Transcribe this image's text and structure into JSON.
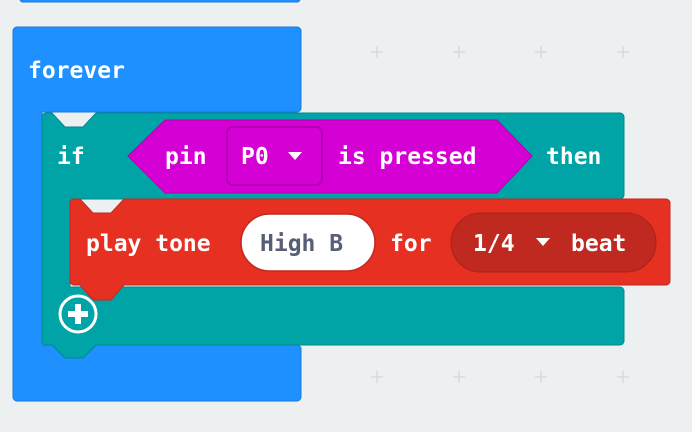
{
  "workspace": {
    "background": "#ecf0f1",
    "forever_block": {
      "label": "forever",
      "color": "#1e90ff"
    },
    "if_block": {
      "if_label": "if",
      "then_label": "then",
      "color": "#00a4a6",
      "add_branch_icon": "plus-circle-icon",
      "condition": {
        "pin_label": "pin",
        "pin_value": "P0",
        "pressed_label": "is pressed",
        "color": "#d400d4",
        "dropdown_icon": "caret-down-icon"
      }
    },
    "play_tone_block": {
      "label": "play tone",
      "note": "High B",
      "for_label": "for",
      "beat_value": "1/4",
      "beat_label": "beat",
      "color": "#e63022",
      "dropdown_icon": "caret-down-icon"
    }
  }
}
